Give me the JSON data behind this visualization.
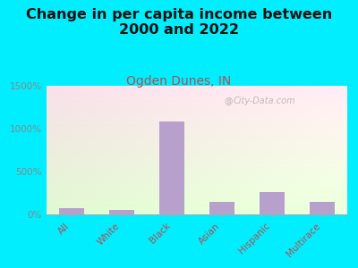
{
  "title": "Change in per capita income between\n2000 and 2022",
  "subtitle": "Ogden Dunes, IN",
  "categories": [
    "All",
    "White",
    "Black",
    "Asian",
    "Hispanic",
    "Multirace"
  ],
  "values": [
    75,
    55,
    1080,
    150,
    260,
    150
  ],
  "bar_color": "#b8a0cc",
  "title_fontsize": 11.5,
  "subtitle_fontsize": 10,
  "subtitle_color": "#b05050",
  "title_color": "#111111",
  "background_outer": "#00eeff",
  "ylim": [
    0,
    1500
  ],
  "yticks": [
    0,
    500,
    1000,
    1500
  ],
  "ytick_labels": [
    "0%",
    "500%",
    "1000%",
    "1500%"
  ],
  "tick_color": "#888888",
  "watermark": "City-Data.com"
}
